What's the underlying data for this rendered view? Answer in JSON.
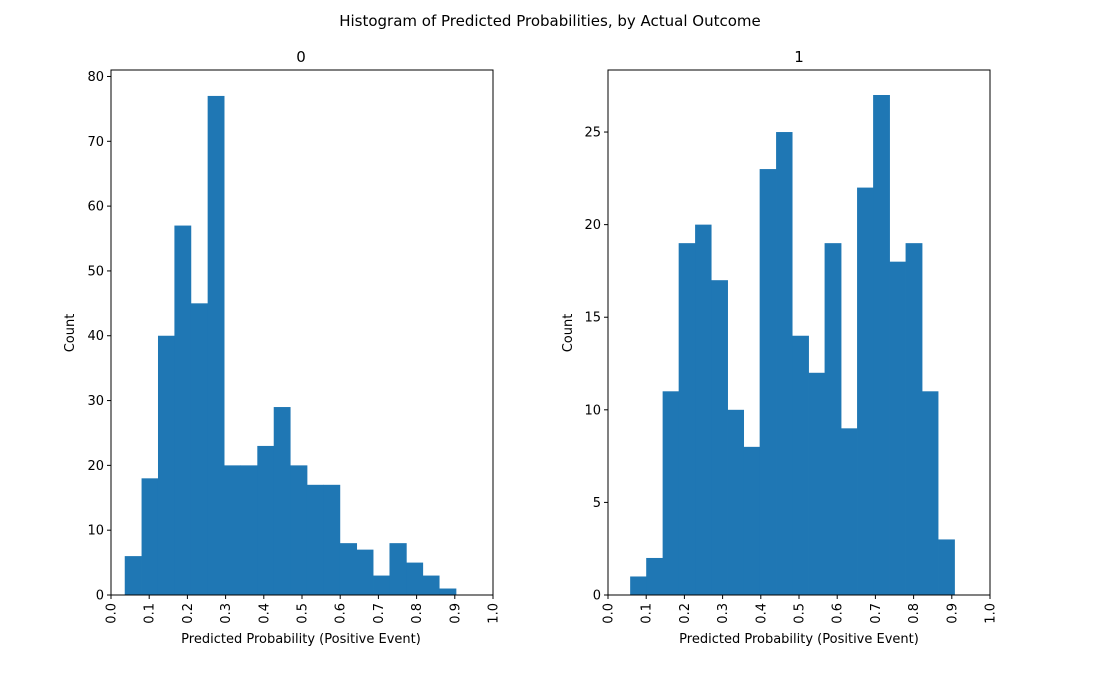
{
  "figure": {
    "title": "Histogram of Predicted Probabilities, by Actual Outcome"
  },
  "chart_data": [
    {
      "type": "bar",
      "title": "0",
      "xlabel": "Predicted Probability (Positive Event)",
      "ylabel": "Count",
      "xlim": [
        0.0,
        1.0
      ],
      "ylim": [
        0,
        81
      ],
      "xticks": [
        "0.0",
        "0.1",
        "0.2",
        "0.3",
        "0.4",
        "0.5",
        "0.6",
        "0.7",
        "0.8",
        "0.9",
        "1.0"
      ],
      "yticks": [
        "0",
        "10",
        "20",
        "30",
        "40",
        "50",
        "60",
        "70",
        "80"
      ],
      "bar_color": "#1f77b4",
      "bins": [
        {
          "x0": 0.036,
          "x1": 0.08,
          "count": 6
        },
        {
          "x0": 0.08,
          "x1": 0.123,
          "count": 18
        },
        {
          "x0": 0.123,
          "x1": 0.166,
          "count": 40
        },
        {
          "x0": 0.166,
          "x1": 0.209,
          "count": 57
        },
        {
          "x0": 0.209,
          "x1": 0.253,
          "count": 45
        },
        {
          "x0": 0.253,
          "x1": 0.296,
          "count": 77
        },
        {
          "x0": 0.296,
          "x1": 0.339,
          "count": 20
        },
        {
          "x0": 0.339,
          "x1": 0.383,
          "count": 20
        },
        {
          "x0": 0.383,
          "x1": 0.426,
          "count": 23
        },
        {
          "x0": 0.426,
          "x1": 0.469,
          "count": 29
        },
        {
          "x0": 0.469,
          "x1": 0.513,
          "count": 20
        },
        {
          "x0": 0.513,
          "x1": 0.556,
          "count": 17
        },
        {
          "x0": 0.556,
          "x1": 0.599,
          "count": 17
        },
        {
          "x0": 0.599,
          "x1": 0.643,
          "count": 8
        },
        {
          "x0": 0.643,
          "x1": 0.686,
          "count": 7
        },
        {
          "x0": 0.686,
          "x1": 0.729,
          "count": 3
        },
        {
          "x0": 0.729,
          "x1": 0.773,
          "count": 8
        },
        {
          "x0": 0.773,
          "x1": 0.816,
          "count": 5
        },
        {
          "x0": 0.816,
          "x1": 0.859,
          "count": 3
        },
        {
          "x0": 0.859,
          "x1": 0.903,
          "count": 1
        }
      ]
    },
    {
      "type": "bar",
      "title": "1",
      "xlabel": "Predicted Probability (Positive Event)",
      "ylabel": "Count",
      "xlim": [
        0.0,
        1.0
      ],
      "ylim": [
        0,
        28.35
      ],
      "xticks": [
        "0.0",
        "0.1",
        "0.2",
        "0.3",
        "0.4",
        "0.5",
        "0.6",
        "0.7",
        "0.8",
        "0.9",
        "1.0"
      ],
      "yticks": [
        "0",
        "5",
        "10",
        "15",
        "20",
        "25"
      ],
      "bar_color": "#1f77b4",
      "bins": [
        {
          "x0": 0.058,
          "x1": 0.1,
          "count": 1
        },
        {
          "x0": 0.1,
          "x1": 0.143,
          "count": 2
        },
        {
          "x0": 0.143,
          "x1": 0.185,
          "count": 11
        },
        {
          "x0": 0.185,
          "x1": 0.228,
          "count": 19
        },
        {
          "x0": 0.228,
          "x1": 0.27,
          "count": 20
        },
        {
          "x0": 0.27,
          "x1": 0.313,
          "count": 17
        },
        {
          "x0": 0.313,
          "x1": 0.355,
          "count": 10
        },
        {
          "x0": 0.355,
          "x1": 0.397,
          "count": 8
        },
        {
          "x0": 0.397,
          "x1": 0.44,
          "count": 23
        },
        {
          "x0": 0.44,
          "x1": 0.482,
          "count": 25
        },
        {
          "x0": 0.482,
          "x1": 0.525,
          "count": 14
        },
        {
          "x0": 0.525,
          "x1": 0.567,
          "count": 12
        },
        {
          "x0": 0.567,
          "x1": 0.61,
          "count": 19
        },
        {
          "x0": 0.61,
          "x1": 0.652,
          "count": 9
        },
        {
          "x0": 0.652,
          "x1": 0.694,
          "count": 22
        },
        {
          "x0": 0.694,
          "x1": 0.737,
          "count": 27
        },
        {
          "x0": 0.737,
          "x1": 0.779,
          "count": 18
        },
        {
          "x0": 0.779,
          "x1": 0.822,
          "count": 19
        },
        {
          "x0": 0.822,
          "x1": 0.864,
          "count": 11
        },
        {
          "x0": 0.864,
          "x1": 0.907,
          "count": 3
        }
      ]
    }
  ]
}
